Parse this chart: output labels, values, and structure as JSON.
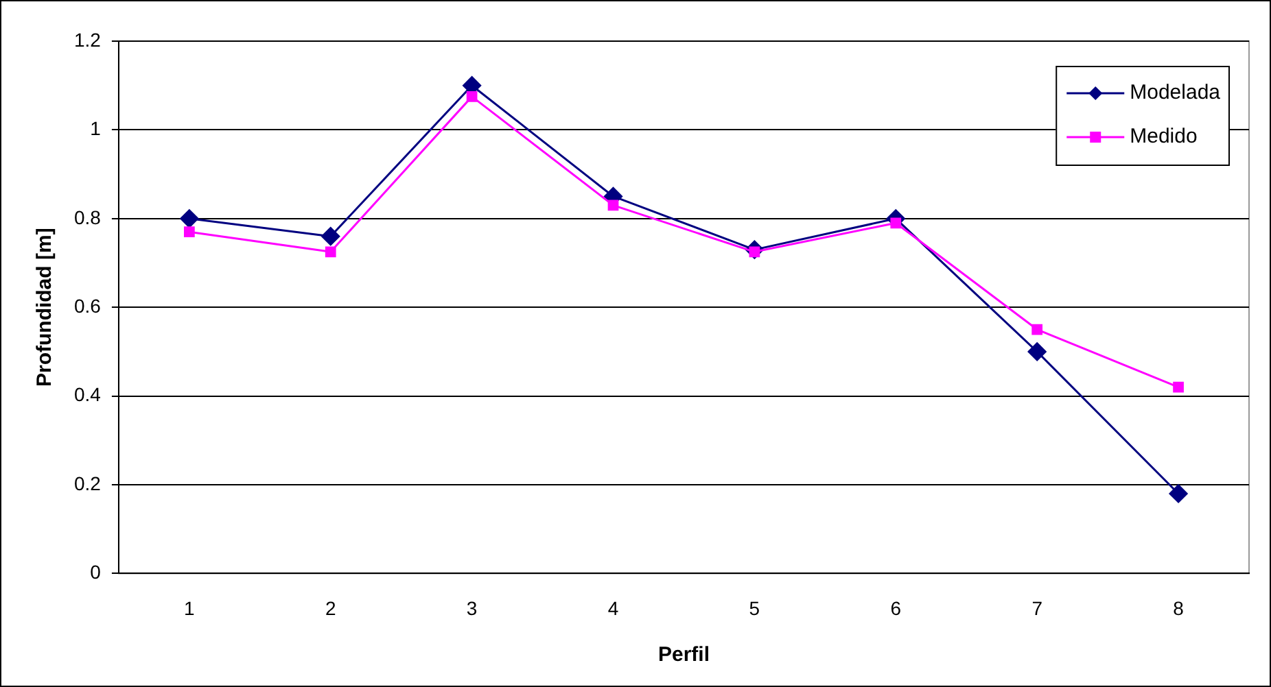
{
  "chart_data": {
    "type": "line",
    "xlabel": "Perfil",
    "ylabel": "Profundidad [m]",
    "categories": [
      "1",
      "2",
      "3",
      "4",
      "5",
      "6",
      "7",
      "8"
    ],
    "series": [
      {
        "name": "Modelada",
        "color": "#000080",
        "marker": "diamond",
        "values": [
          0.8,
          0.76,
          1.1,
          0.85,
          0.73,
          0.8,
          0.5,
          0.18
        ]
      },
      {
        "name": "Medido",
        "color": "#ff00ff",
        "marker": "square",
        "values": [
          0.77,
          0.725,
          1.075,
          0.83,
          0.725,
          0.79,
          0.55,
          0.42
        ]
      }
    ],
    "ylim": [
      0,
      1.2
    ],
    "yticks": [
      0,
      0.2,
      0.4,
      0.6,
      0.8,
      1,
      1.2
    ],
    "grid": "y",
    "legend": "top right",
    "line_style": "solid"
  }
}
